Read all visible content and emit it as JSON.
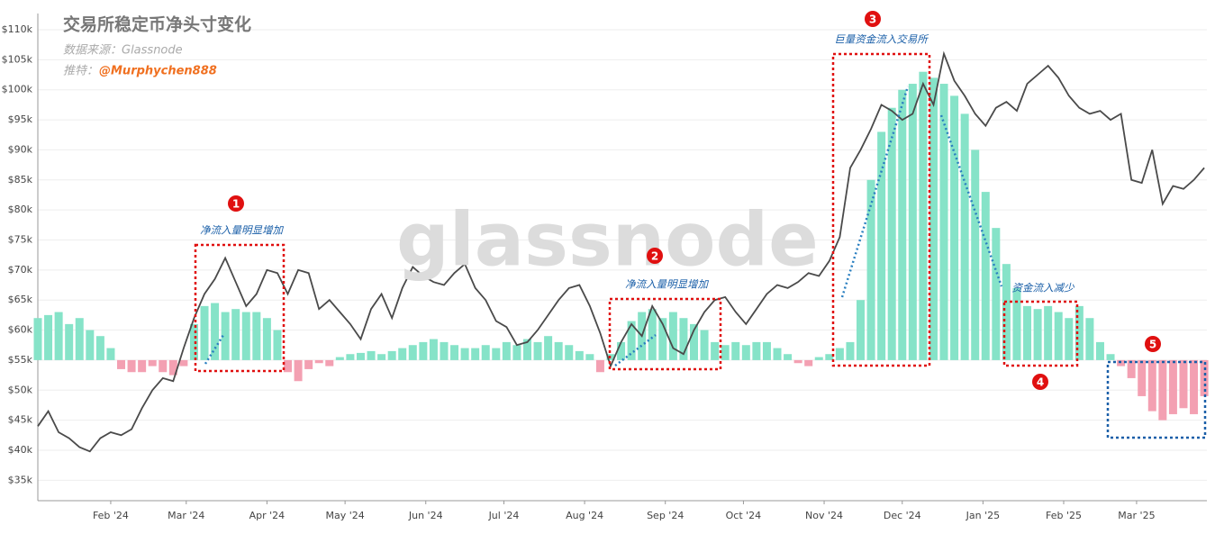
{
  "chart_data": {
    "type": "combo",
    "title": "交易所稳定币净头寸变化",
    "source": "数据来源：Glassnode",
    "twitter_label": "推特：",
    "twitter_handle": "@Murphychen888",
    "watermark": "glassnode",
    "x": [
      3,
      7,
      11,
      15,
      19,
      23,
      27,
      31,
      35,
      39,
      43,
      47,
      51,
      55,
      59,
      63,
      67,
      71,
      75,
      79,
      83,
      87,
      91,
      95,
      99,
      103,
      107,
      111,
      115,
      119,
      123,
      127,
      131,
      135,
      139,
      143,
      147,
      151,
      155,
      159,
      163,
      167,
      171,
      175,
      179,
      183,
      187,
      191,
      195,
      199,
      203,
      207,
      211,
      215,
      219,
      223,
      227,
      231,
      235,
      239,
      243,
      247,
      251,
      255,
      259,
      263,
      267,
      271,
      275,
      279,
      283,
      287,
      291,
      295,
      299,
      303,
      307,
      311,
      315,
      319,
      323,
      327,
      331,
      335,
      339,
      343,
      347,
      351,
      355,
      359,
      363,
      367,
      371,
      375,
      379,
      383,
      387,
      391,
      395,
      399,
      403,
      407,
      411,
      415,
      419,
      423,
      427,
      431,
      435,
      439,
      443,
      447,
      451
    ],
    "xlim": [
      3,
      452
    ],
    "xticks": [
      {
        "value": 31,
        "label": "Feb '24"
      },
      {
        "value": 60,
        "label": "Mar '24"
      },
      {
        "value": 91,
        "label": "Apr '24"
      },
      {
        "value": 121,
        "label": "May '24"
      },
      {
        "value": 152,
        "label": "Jun '24"
      },
      {
        "value": 182,
        "label": "Jul '24"
      },
      {
        "value": 213,
        "label": "Aug '24"
      },
      {
        "value": 244,
        "label": "Sep '24"
      },
      {
        "value": 274,
        "label": "Oct '24"
      },
      {
        "value": 305,
        "label": "Nov '24"
      },
      {
        "value": 335,
        "label": "Dec '24"
      },
      {
        "value": 366,
        "label": "Jan '25"
      },
      {
        "value": 397,
        "label": "Feb '25"
      },
      {
        "value": 425,
        "label": "Mar '25"
      }
    ],
    "ylim": [
      31600,
      112700
    ],
    "yticks": [
      {
        "value": 35000,
        "label": "$35k"
      },
      {
        "value": 40000,
        "label": "$40k"
      },
      {
        "value": 45000,
        "label": "$45k"
      },
      {
        "value": 50000,
        "label": "$50k"
      },
      {
        "value": 55000,
        "label": "$55k"
      },
      {
        "value": 60000,
        "label": "$60k"
      },
      {
        "value": 65000,
        "label": "$65k"
      },
      {
        "value": 70000,
        "label": "$70k"
      },
      {
        "value": 75000,
        "label": "$75k"
      },
      {
        "value": 80000,
        "label": "$80k"
      },
      {
        "value": 85000,
        "label": "$85k"
      },
      {
        "value": 90000,
        "label": "$90k"
      },
      {
        "value": 95000,
        "label": "$95k"
      },
      {
        "value": 100000,
        "label": "$100k"
      },
      {
        "value": 105000,
        "label": "$105k"
      },
      {
        "value": 110000,
        "label": "$110k"
      }
    ],
    "y2lim": [
      -23.4,
      57.7
    ],
    "grid": true,
    "series": [
      {
        "type": "bar",
        "axis": "y2",
        "color": "#86e3c8",
        "negative_color": "#f3a0b2",
        "values": [
          7,
          7.5,
          8,
          6,
          7,
          5,
          4,
          2,
          -1.5,
          -2,
          -2,
          -1,
          -2,
          -2.5,
          -1,
          6,
          9,
          9.5,
          8,
          8.5,
          8,
          8,
          7,
          5,
          -2,
          -3.5,
          -1.5,
          -0.5,
          -1,
          0.5,
          1,
          1.2,
          1.5,
          1,
          1.5,
          2,
          2.5,
          3,
          3.5,
          3,
          2.5,
          2,
          2,
          2.5,
          2,
          3,
          2.5,
          3.5,
          3,
          4,
          3,
          2.5,
          1.5,
          1,
          -2,
          1,
          3,
          6.5,
          8,
          8.5,
          7,
          8,
          7,
          6,
          5,
          3,
          2.5,
          3,
          2.5,
          3,
          3,
          2,
          1,
          -0.5,
          -1,
          0.5,
          1,
          2,
          3,
          10,
          30,
          38,
          42,
          45,
          46,
          48,
          47,
          46,
          44,
          41,
          35,
          28,
          22,
          16,
          12,
          9,
          8.5,
          9,
          8,
          7,
          9,
          7,
          3,
          1,
          -1,
          -3,
          -6,
          -8.5,
          -10,
          -9,
          -8,
          -9,
          -6
        ]
      },
      {
        "type": "line",
        "color": "#4a4a4a",
        "values": [
          44000,
          46500,
          43000,
          42000,
          40500,
          39800,
          42000,
          43000,
          42500,
          43500,
          47000,
          50000,
          52000,
          51500,
          57000,
          62000,
          66000,
          68500,
          72000,
          68000,
          64000,
          66000,
          70000,
          69500,
          66000,
          70000,
          69500,
          63500,
          65000,
          63000,
          61000,
          58500,
          63500,
          66000,
          62000,
          67000,
          70500,
          69000,
          68000,
          67500,
          69500,
          71000,
          67000,
          65000,
          61500,
          60500,
          57500,
          58000,
          60000,
          62500,
          65000,
          67000,
          67500,
          64000,
          59500,
          54000,
          58000,
          61000,
          59000,
          64000,
          61000,
          57000,
          56000,
          60000,
          63000,
          65000,
          65500,
          63000,
          61000,
          63500,
          66000,
          67500,
          67000,
          68000,
          69500,
          69000,
          71500,
          75500,
          87000,
          90000,
          93500,
          97500,
          96500,
          95000,
          96000,
          101000,
          97500,
          106000,
          101500,
          99000,
          96000,
          94000,
          97000,
          98000,
          96500,
          101000,
          102500,
          104000,
          102000,
          99000,
          97000,
          96000,
          96500,
          95000,
          96000,
          85000,
          84500,
          90000,
          81000,
          84000,
          83500,
          85000,
          87000
        ]
      }
    ],
    "annotations": [
      {
        "label": "1",
        "text": "净流入量明显增加"
      },
      {
        "label": "2",
        "text": "净流入量明显增加"
      },
      {
        "label": "3",
        "text": "巨量资金流入交易所"
      },
      {
        "label": "4",
        "text": "资金流入减少"
      },
      {
        "label": "5"
      }
    ]
  }
}
